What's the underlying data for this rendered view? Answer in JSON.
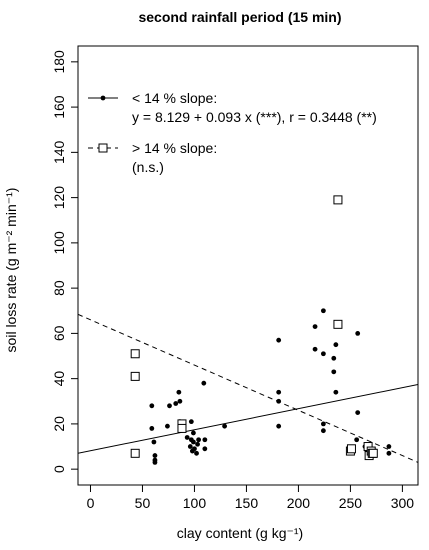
{
  "chart_data": {
    "type": "scatter",
    "title": "second rainfall period (15 min)",
    "xlabel": "clay content (g kg⁻¹)",
    "ylabel": "soil loss rate (g m⁻² min⁻¹)",
    "xlim": [
      -12,
      315
    ],
    "ylim": [
      -7,
      187
    ],
    "xticks": [
      0,
      50,
      100,
      150,
      200,
      250,
      300
    ],
    "yticks": [
      0,
      20,
      40,
      60,
      80,
      100,
      120,
      140,
      160,
      180
    ],
    "grid": false,
    "legend_position": "top-left",
    "series": [
      {
        "name": "< 14 % slope:",
        "marker": "filled-circle",
        "line_style": "solid",
        "regression_text": "y = 8.129 + 0.093 x (***),  r = 0.3448 (**)",
        "fit": {
          "intercept": 8.129,
          "slope": 0.093,
          "x_range": [
            -12,
            315
          ]
        },
        "points": [
          [
            59,
            28
          ],
          [
            59,
            18
          ],
          [
            61,
            12
          ],
          [
            62,
            6
          ],
          [
            62,
            4
          ],
          [
            62,
            3
          ],
          [
            74,
            19
          ],
          [
            76,
            28
          ],
          [
            82,
            29
          ],
          [
            85,
            34
          ],
          [
            86,
            30
          ],
          [
            86,
            21
          ],
          [
            86,
            17
          ],
          [
            93,
            14
          ],
          [
            96,
            10
          ],
          [
            97,
            13
          ],
          [
            97,
            21
          ],
          [
            98,
            8
          ],
          [
            99,
            12
          ],
          [
            99,
            16
          ],
          [
            100,
            9
          ],
          [
            102,
            7
          ],
          [
            103,
            11
          ],
          [
            104,
            13
          ],
          [
            109,
            38
          ],
          [
            110,
            9
          ],
          [
            110,
            13
          ],
          [
            129,
            19
          ],
          [
            181,
            57
          ],
          [
            181,
            34
          ],
          [
            181,
            30
          ],
          [
            181,
            19
          ],
          [
            216,
            63
          ],
          [
            216,
            53
          ],
          [
            224,
            70
          ],
          [
            224,
            51
          ],
          [
            224,
            20
          ],
          [
            224,
            17
          ],
          [
            234,
            49
          ],
          [
            234,
            43
          ],
          [
            236,
            55
          ],
          [
            236,
            34
          ],
          [
            257,
            60
          ],
          [
            257,
            25
          ],
          [
            256,
            13
          ],
          [
            264,
            10
          ],
          [
            266,
            8
          ],
          [
            270,
            9
          ],
          [
            271,
            8
          ],
          [
            287,
            10
          ],
          [
            287,
            7
          ]
        ]
      },
      {
        "name": "> 14 % slope:",
        "marker": "open-square",
        "line_style": "dashed",
        "regression_text": "(n.s.)",
        "fit": {
          "intercept": 66,
          "slope": -0.2,
          "x_range": [
            -12,
            315
          ]
        },
        "points": [
          [
            43,
            51
          ],
          [
            43,
            41
          ],
          [
            43,
            7
          ],
          [
            88,
            20
          ],
          [
            88,
            18
          ],
          [
            238,
            119
          ],
          [
            238,
            64
          ],
          [
            250,
            8
          ],
          [
            251,
            9
          ],
          [
            267,
            10
          ],
          [
            268,
            6
          ],
          [
            270,
            8
          ],
          [
            271,
            7
          ],
          [
            272,
            7
          ]
        ]
      }
    ]
  }
}
